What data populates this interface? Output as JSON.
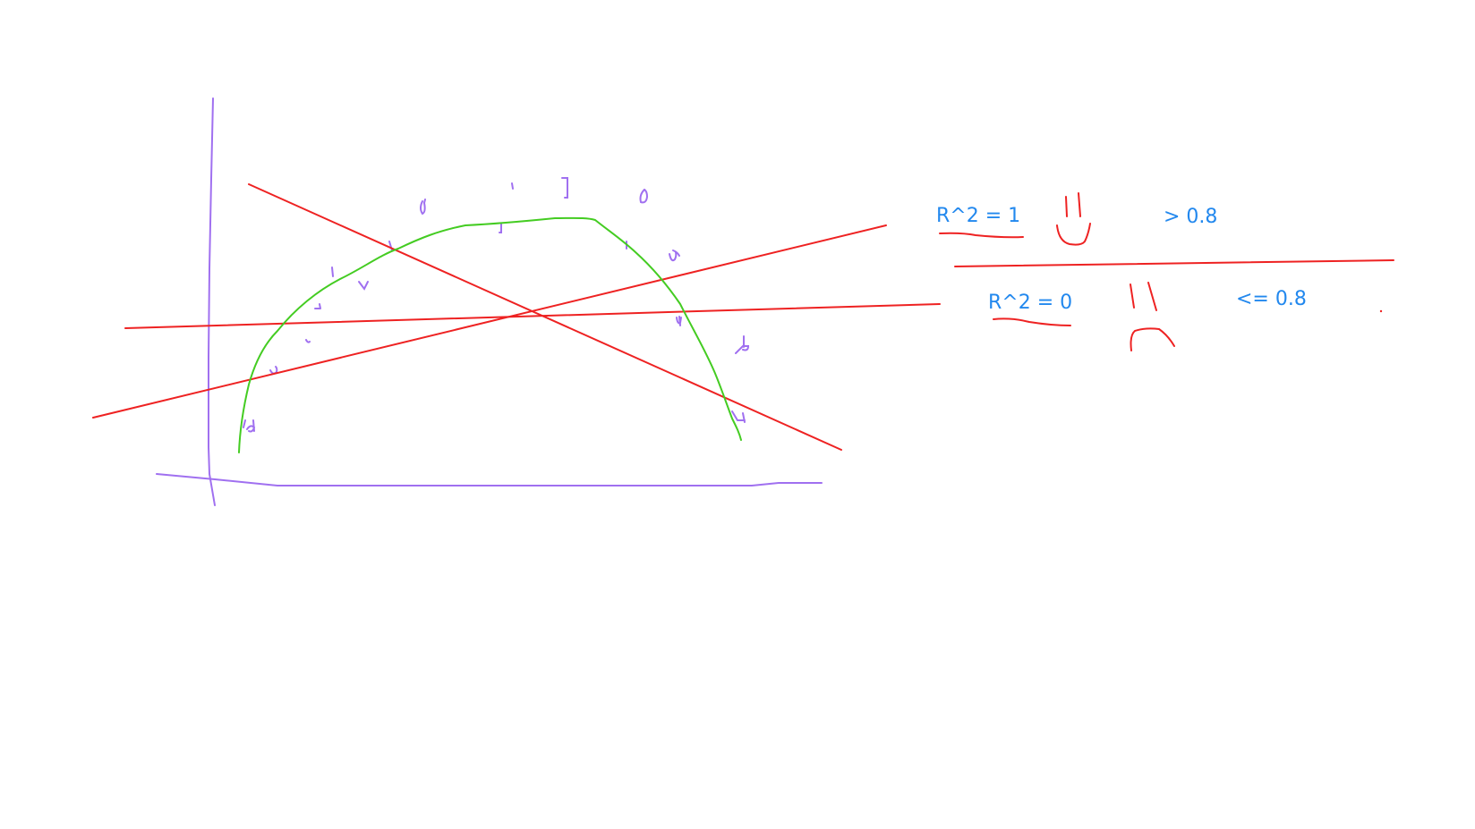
{
  "colors": {
    "axis_ink": "#a070f0",
    "point_ink": "#a070f0",
    "fit_line_ink": "#ee2222",
    "curve_ink": "#44cc22",
    "text_ink": "#2288ee",
    "annotation_ink": "#ee2222"
  },
  "notes": {
    "top_r2": "R^2 = 1",
    "top_threshold": "> 0.8",
    "bottom_r2": "R^2 = 0",
    "bottom_threshold": "<= 0.8"
  },
  "icons": {
    "top_face": "smiley-face-icon",
    "bottom_face": "frowny-face-icon"
  }
}
